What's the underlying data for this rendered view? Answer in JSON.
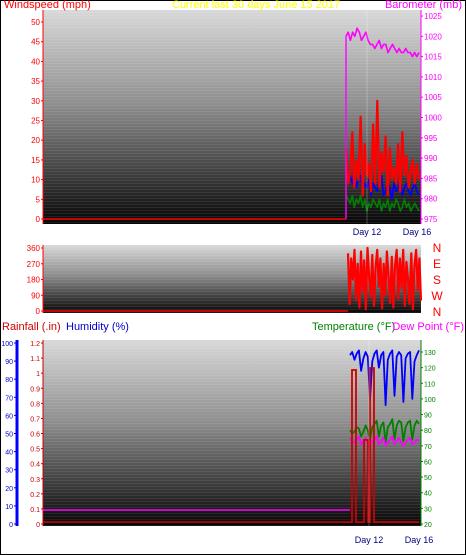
{
  "colors": {
    "wind": "#ff0000",
    "gust": "#0000ff",
    "baro": "#ff00ff",
    "rain": "#cc0000",
    "humidity": "#0000ff",
    "temperature": "#008000",
    "dewpoint": "#ff00ff",
    "title": "#ffff00"
  },
  "chart_data": [
    {
      "id": "wind-baro",
      "type": "line",
      "title": "Current last 30 days June 15 2017",
      "left_label": "Windspeed (mph)",
      "right_label": "Barometer (mb)",
      "left_ticks": [
        "0",
        "5",
        "10",
        "15",
        "20",
        "25",
        "30",
        "35",
        "40",
        "45",
        "50"
      ],
      "right_ticks": [
        "975",
        "980",
        "985",
        "990",
        "995",
        "1000",
        "1005",
        "1010",
        "1015",
        "1020",
        "1025"
      ],
      "x_labels": [
        "Day 12",
        "Day 16"
      ],
      "ylim_left": [
        0,
        50
      ],
      "ylim_right": [
        975,
        1025
      ],
      "series": [
        {
          "key": "baro",
          "axis": "right",
          "color_key": "baro",
          "values": [
            1020,
            1021,
            1019,
            1021,
            1020,
            1022,
            1021,
            1019,
            1020,
            1021,
            1019,
            1018,
            1018,
            1017,
            1018,
            1019,
            1017,
            1018,
            1018,
            1016,
            1017,
            1018,
            1017,
            1016,
            1017,
            1016,
            1016,
            1017,
            1016,
            1016,
            1015,
            1016,
            1015,
            1016
          ]
        },
        {
          "key": "gust",
          "axis": "left",
          "color_key": "gust",
          "values": [
            12,
            10,
            11,
            9,
            12,
            8,
            10,
            11,
            7,
            9,
            8,
            10,
            6,
            9,
            8,
            7,
            10,
            11,
            6,
            7,
            9,
            8,
            5,
            9,
            7,
            8,
            10,
            6,
            8,
            9,
            7,
            6,
            8,
            9,
            7,
            6
          ]
        },
        {
          "key": "windspeed",
          "axis": "left",
          "color_key": "wind",
          "values": [
            18,
            9,
            12,
            22,
            8,
            15,
            10,
            26,
            6,
            19,
            11,
            14,
            7,
            24,
            9,
            30,
            8,
            17,
            12,
            21,
            6,
            18,
            10,
            13,
            9,
            19,
            7,
            22,
            11,
            16,
            8,
            12,
            15,
            9,
            14,
            10
          ]
        },
        {
          "key": "wind-green",
          "axis": "left",
          "color_key": "temperature",
          "values": [
            6,
            5,
            4,
            6,
            3,
            5,
            4,
            6,
            3,
            5,
            2,
            4,
            3,
            5,
            4,
            3,
            5,
            2,
            4,
            3,
            5,
            2,
            4,
            3,
            5,
            4,
            2,
            3,
            5,
            3,
            4,
            2,
            3,
            4,
            3,
            2
          ]
        }
      ]
    },
    {
      "id": "wind-direction",
      "type": "line",
      "left_ticks": [
        "0",
        "90",
        "180",
        "270",
        "360"
      ],
      "right_ticks": [
        "N",
        "E",
        "S",
        "W",
        "N"
      ],
      "ylim": [
        0,
        360
      ],
      "series": [
        {
          "key": "direction",
          "color_key": "wind",
          "values": [
            330,
            40,
            300,
            180,
            350,
            60,
            270,
            20,
            340,
            110,
            290,
            10,
            360,
            200,
            80,
            320,
            30,
            250,
            350,
            140,
            300,
            15,
            270,
            90,
            340,
            190,
            45,
            310,
            20,
            260,
            350,
            70,
            300,
            130,
            350,
            30,
            280,
            180,
            40,
            330,
            10,
            260,
            350,
            120,
            300,
            60
          ]
        }
      ]
    },
    {
      "id": "rain-humidity-temp",
      "type": "line",
      "left1_label": "Rainfall (.in)",
      "left2_label": "Humidity (%)",
      "right_label": "Temperature (°F)",
      "right2_label": "Dew Point (°F)",
      "left1_ticks": [
        "0",
        "10",
        "20",
        "30",
        "40",
        "50",
        "60",
        "70",
        "80",
        "90",
        "100"
      ],
      "left2_ticks": [
        "0",
        "0.1",
        "0.2",
        "0.3",
        "0.4",
        "0.5",
        "0.6",
        "0.7",
        "0.8",
        "0.9",
        "1",
        "1.1",
        "1.2"
      ],
      "right_ticks": [
        "20",
        "30",
        "40",
        "50",
        "60",
        "70",
        "80",
        "90",
        "100",
        "110",
        "120",
        "130"
      ],
      "x_labels": [
        "Day 12",
        "Day 16"
      ],
      "series": [
        {
          "key": "temperature-hi",
          "color_key": "humidity",
          "values": [
            128,
            130,
            125,
            129,
            131,
            118,
            126,
            130,
            127,
            100,
            124,
            129,
            131,
            120,
            128,
            130,
            96,
            125,
            129,
            131,
            102,
            127,
            130,
            128,
            98,
            126,
            129,
            130,
            100,
            124,
            128,
            131
          ]
        },
        {
          "key": "temperature",
          "color_key": "temperature",
          "values": [
            80,
            78,
            79,
            82,
            81,
            76,
            79,
            83,
            80,
            74,
            82,
            84,
            86,
            76,
            83,
            85,
            72,
            82,
            84,
            87,
            74,
            83,
            86,
            85,
            73,
            82,
            85,
            86,
            74,
            83,
            86,
            84
          ]
        },
        {
          "key": "dewpoint",
          "color_key": "dewpoint",
          "values": [
            75,
            73,
            72,
            74,
            76,
            71,
            73,
            75,
            72,
            70,
            73,
            74,
            76,
            71,
            73,
            75,
            70,
            72,
            74,
            76,
            71,
            73,
            75,
            72,
            70,
            72,
            74,
            75,
            71,
            72,
            74,
            73
          ]
        }
      ]
    }
  ]
}
